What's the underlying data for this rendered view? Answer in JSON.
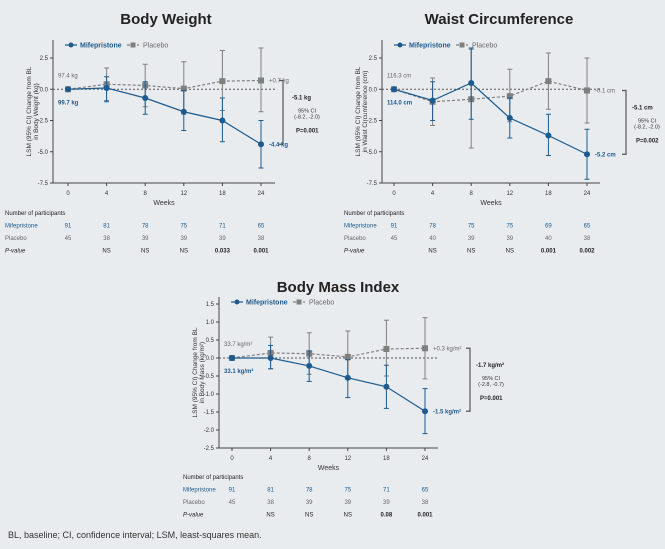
{
  "colors": {
    "mifepristone": "#1d5a8e",
    "placebo": "#7f7f7f",
    "background": "#e9ecee"
  },
  "footnote": "BL, baseline; CI, confidence interval; LSM, least-squares mean.",
  "chart_data": [
    {
      "type": "line",
      "title": "Body Weight",
      "xlabel": "Weeks",
      "ylabel": [
        "LSM (95% CI) Change from BL",
        "in Body Weight (kg)"
      ],
      "x": [
        "0",
        "4",
        "8",
        "12",
        "18",
        "24"
      ],
      "yticks": [
        "2.5",
        "0.0",
        "-2.5",
        "-5.0",
        "-7.5"
      ],
      "ylim": [
        -7.5,
        3.5
      ],
      "legend": [
        "Mifepristone",
        "Placebo"
      ],
      "series": [
        {
          "name": "Mifepristone",
          "values": [
            0,
            0.1,
            -0.7,
            -1.8,
            -2.5,
            -4.4
          ],
          "ci": [
            [
              0,
              0
            ],
            [
              -1.0,
              1.0
            ],
            [
              -2.0,
              0.6
            ],
            [
              -3.3,
              -0.1
            ],
            [
              -4.2,
              -0.7
            ],
            [
              -6.3,
              -2.5
            ]
          ]
        },
        {
          "name": "Placebo",
          "values": [
            0,
            0.4,
            0.3,
            0.05,
            0.65,
            0.7
          ],
          "ci": [
            [
              0,
              0
            ],
            [
              -0.9,
              1.7
            ],
            [
              -1.4,
              2.0
            ],
            [
              -2.0,
              2.2
            ],
            [
              -1.7,
              3.1
            ],
            [
              -1.8,
              3.3
            ]
          ]
        }
      ],
      "annotations": {
        "placebo_baseline": "97.4 kg",
        "mife_baseline": "99.7 kg",
        "placebo_end": "+0.7 kg",
        "mife_end": "-4.4 kg",
        "difference": "-5.1 kg",
        "ci_label": "95% CI",
        "ci_range": "(-8.2, -2.0)",
        "p": "P=0.001"
      },
      "table": {
        "header": "Number of participants",
        "rows": [
          {
            "label": "Mifepristone",
            "values": [
              "91",
              "81",
              "78",
              "75",
              "71",
              "65"
            ]
          },
          {
            "label": "Placebo",
            "values": [
              "45",
              "38",
              "39",
              "39",
              "39",
              "38"
            ]
          },
          {
            "label": "P-value",
            "values": [
              "",
              "NS",
              "NS",
              "NS",
              "0.033",
              "0.001"
            ]
          }
        ]
      }
    },
    {
      "type": "line",
      "title": "Waist Circumference",
      "xlabel": "Weeks",
      "ylabel": [
        "LSM (95% CI) Change from BL",
        "in Waist Circumference (cm)"
      ],
      "x": [
        "0",
        "4",
        "8",
        "12",
        "18",
        "24"
      ],
      "yticks": [
        "2.5",
        "0.0",
        "-2.5",
        "-5.0",
        "-7.5"
      ],
      "ylim": [
        -7.5,
        3.5
      ],
      "legend": [
        "Mifepristone",
        "Placebo"
      ],
      "series": [
        {
          "name": "Mifepristone",
          "values": [
            0,
            -0.9,
            0.5,
            -2.3,
            -3.7,
            -5.2
          ],
          "ci": [
            [
              0,
              0
            ],
            [
              -2.5,
              0.6
            ],
            [
              -2.4,
              3.3
            ],
            [
              -3.9,
              -0.7
            ],
            [
              -5.3,
              -2.0
            ],
            [
              -7.2,
              -3.2
            ]
          ]
        },
        {
          "name": "Placebo",
          "values": [
            0,
            -1.0,
            -0.8,
            -0.55,
            0.65,
            -0.1
          ],
          "ci": [
            [
              0,
              0
            ],
            [
              -2.9,
              0.9
            ],
            [
              -4.7,
              3.2
            ],
            [
              -2.6,
              1.6
            ],
            [
              -1.6,
              2.9
            ],
            [
              -2.7,
              2.5
            ]
          ]
        }
      ],
      "annotations": {
        "placebo_baseline": "116.3 cm",
        "mife_baseline": "114.0 cm",
        "placebo_end": "-0.1 cm",
        "mife_end": "-5.2 cm",
        "difference": "-5.1 cm",
        "ci_label": "95% CI",
        "ci_range": "(-8.2, -2.0)",
        "p": "P=0.002"
      },
      "table": {
        "header": "Number of participants",
        "rows": [
          {
            "label": "Mifepristone",
            "values": [
              "91",
              "78",
              "75",
              "75",
              "69",
              "65"
            ]
          },
          {
            "label": "Placebo",
            "values": [
              "45",
              "40",
              "39",
              "39",
              "40",
              "38"
            ]
          },
          {
            "label": "P-value",
            "values": [
              "",
              "NS",
              "NS",
              "NS",
              "0.001",
              "0.002"
            ]
          }
        ]
      }
    },
    {
      "type": "line",
      "title": "Body Mass Index",
      "xlabel": "Weeks",
      "ylabel": [
        "LSM (95% CI) Change from BL",
        "in Body Mass (kg/m²)"
      ],
      "x": [
        "0",
        "4",
        "8",
        "12",
        "18",
        "24"
      ],
      "yticks": [
        "1.5",
        "1.0",
        "0.5",
        "0.0",
        "-0.5",
        "-1.0",
        "-1.5",
        "-2.0",
        "-2.5"
      ],
      "ylim": [
        -2.5,
        1.5
      ],
      "legend": [
        "Mifepristone",
        "Placebo"
      ],
      "series": [
        {
          "name": "Mifepristone",
          "values": [
            0,
            0,
            -0.22,
            -0.55,
            -0.8,
            -1.48
          ],
          "ci": [
            [
              0,
              0
            ],
            [
              -0.3,
              0.35
            ],
            [
              -0.65,
              0.2
            ],
            [
              -1.1,
              -0.05
            ],
            [
              -1.4,
              -0.2
            ],
            [
              -2.1,
              -0.85
            ]
          ]
        },
        {
          "name": "Placebo",
          "values": [
            0,
            0.14,
            0.12,
            0.03,
            0.25,
            0.27
          ],
          "ci": [
            [
              0,
              0
            ],
            [
              -0.3,
              0.58
            ],
            [
              -0.45,
              0.7
            ],
            [
              -0.6,
              0.75
            ],
            [
              -0.5,
              1.05
            ],
            [
              -0.58,
              1.12
            ]
          ]
        }
      ],
      "annotations": {
        "placebo_baseline": "33.7 kg/m²",
        "mife_baseline": "33.1 kg/m²",
        "placebo_end": "+0.3 kg/m²",
        "mife_end": "-1.5 kg/m²",
        "difference": "-1.7 kg/m²",
        "ci_label": "95% CI",
        "ci_range": "(-2.8, -0.7)",
        "p": "P=0.001"
      },
      "table": {
        "header": "Number of participants",
        "rows": [
          {
            "label": "Mifepristone",
            "values": [
              "91",
              "81",
              "78",
              "75",
              "71",
              "65"
            ]
          },
          {
            "label": "Placebo",
            "values": [
              "45",
              "38",
              "39",
              "39",
              "39",
              "38"
            ]
          },
          {
            "label": "P-value",
            "values": [
              "",
              "NS",
              "NS",
              "NS",
              "0.08",
              "0.001"
            ]
          }
        ]
      }
    }
  ]
}
